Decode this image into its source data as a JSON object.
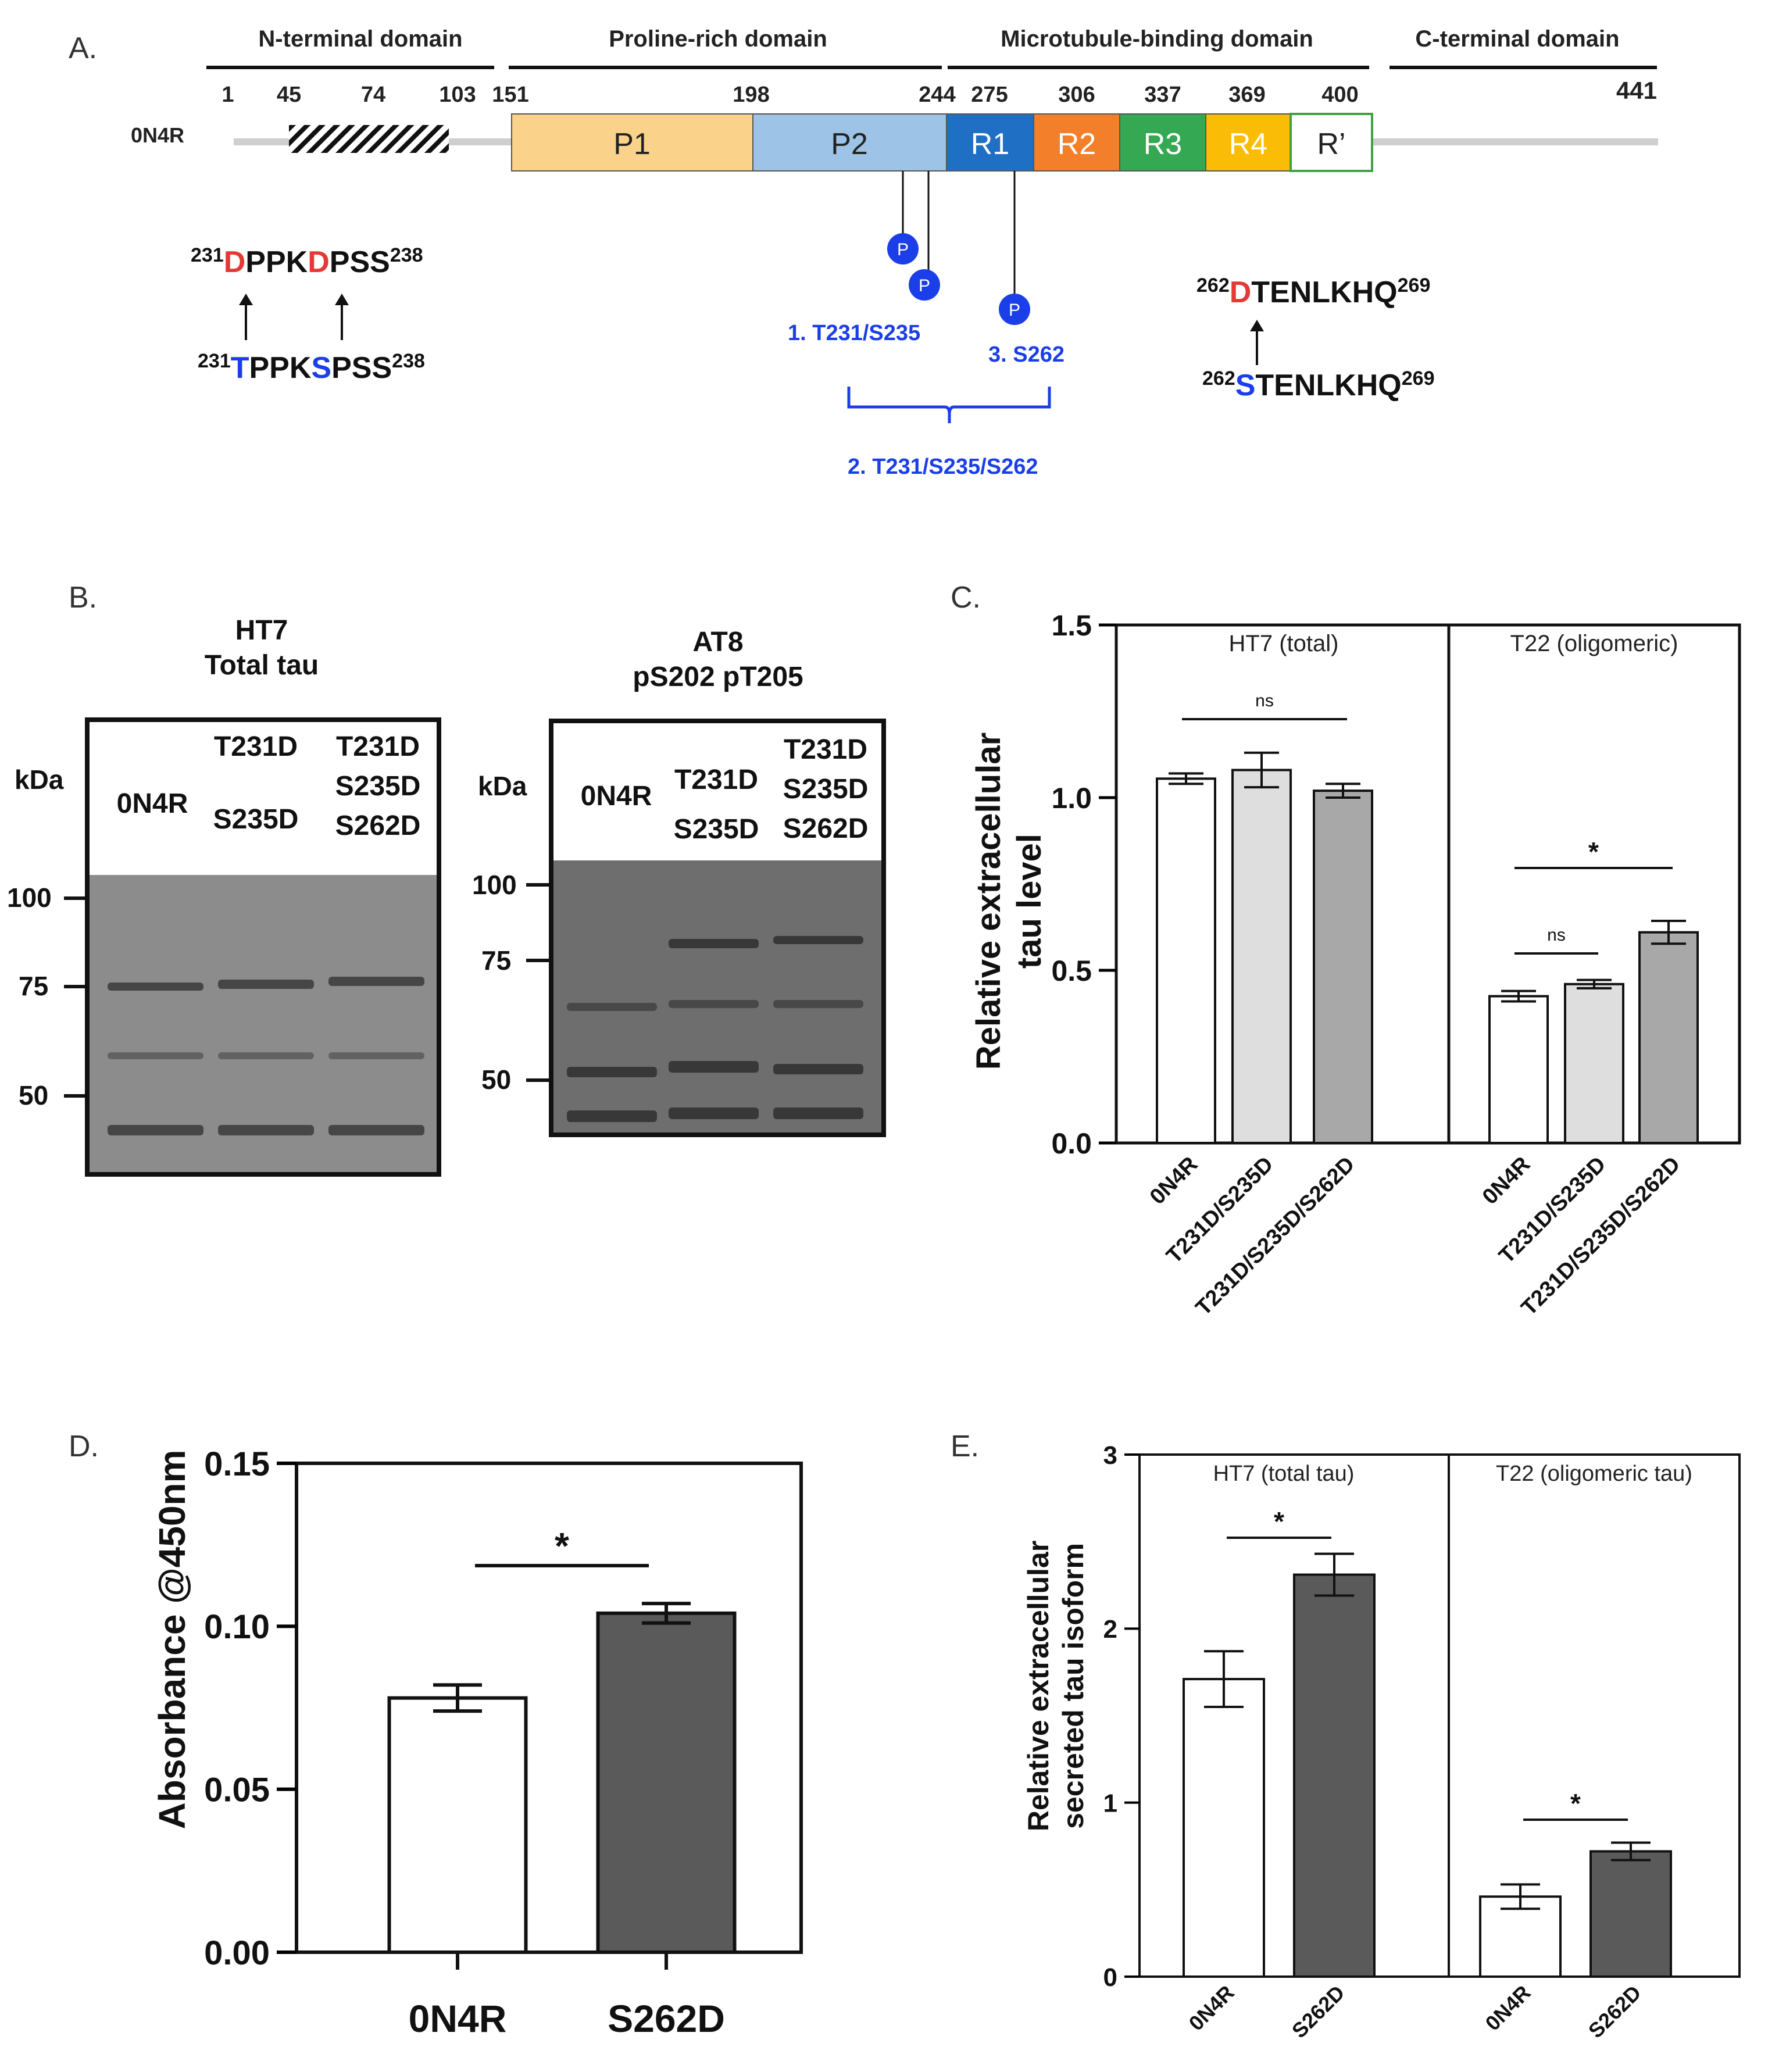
{
  "colors": {
    "p1": "#fad28a",
    "p2": "#9dc3e6",
    "r1": "#1f6fc4",
    "r2": "#f47f2a",
    "r3": "#34a853",
    "r4": "#fbbc05",
    "rprime": "#ffffff",
    "rprime_border": "#43a047",
    "mut_red": "#e53935",
    "site_blue": "#1a3ee8",
    "phos": "#1a3ee8",
    "bar_white": "#ffffff",
    "bar_light": "#dedede",
    "bar_mid": "#a8a8a8",
    "bar_dark": "#5a5a5a",
    "blot_bg": "#8a8a8a",
    "blot_bg2": "#6e6e6e",
    "band": "#3a3a3a",
    "axis": "#000000",
    "backbone": "#cfcfcf"
  },
  "panel_a": {
    "label": "A.",
    "domains": [
      "N-terminal domain",
      "Proline-rich domain",
      "Microtubule-binding domain",
      "C-terminal domain"
    ],
    "positions": [
      "1",
      "45",
      "74",
      "103",
      "151",
      "198",
      "244",
      "275",
      "306",
      "337",
      "369",
      "400",
      "441"
    ],
    "isoform": "0N4R",
    "regions": [
      "P1",
      "P2",
      "R1",
      "R2",
      "R3",
      "R4",
      "R’"
    ],
    "phospho_marker": "P",
    "mutant_seq1": {
      "start": "231",
      "end": "238",
      "d1": "D",
      "mid": "PPK",
      "d2": "D",
      "tail": "PSS"
    },
    "wt_seq1": {
      "start": "231",
      "end": "238",
      "s1": "T",
      "mid": "PPK",
      "s2": "S",
      "tail": "PSS"
    },
    "mutant_seq2": {
      "start": "262",
      "end": "269",
      "d1": "D",
      "tail": "TENLKHQ"
    },
    "wt_seq2": {
      "start": "262",
      "end": "269",
      "s1": "S",
      "tail": "TENLKHQ"
    },
    "site_labels": [
      "1. T231/S235",
      "3. S262",
      "2. T231/S235/S262"
    ]
  },
  "panel_b": {
    "label": "B.",
    "blot1": {
      "title1": "HT7",
      "title2": "Total tau",
      "kda": "kDa",
      "lanes": [
        [
          "0N4R"
        ],
        [
          "T231D",
          "S235D"
        ],
        [
          "T231D",
          "S235D",
          "S262D"
        ]
      ],
      "markers": [
        "100",
        "75",
        "50"
      ]
    },
    "blot2": {
      "title1": "AT8",
      "title2": "pS202 pT205",
      "kda": "kDa",
      "lanes": [
        [
          "0N4R"
        ],
        [
          "T231D",
          "S235D"
        ],
        [
          "T231D",
          "S235D",
          "S262D"
        ]
      ],
      "markers": [
        "100",
        "75",
        "50"
      ]
    }
  },
  "chart_data": [
    {
      "panel": "C.",
      "type": "bar",
      "ylabel": [
        "Relative extracellular",
        "tau level"
      ],
      "ylim": [
        0,
        1.5
      ],
      "yticks": [
        "0.0",
        "0.5",
        "1.0",
        "1.5"
      ],
      "groups": [
        {
          "name": "HT7 (total)",
          "categories": [
            "0N4R",
            "T231D/S235D",
            "T231D/S235D/S262D"
          ],
          "values": [
            1.055,
            1.08,
            1.02
          ],
          "errors": [
            0.015,
            0.05,
            0.02
          ],
          "sig": [
            {
              "label": "ns",
              "from": 0,
              "to": 2
            }
          ]
        },
        {
          "name": "T22 (oligomeric)",
          "categories": [
            "0N4R",
            "T231D/S235D",
            "T231D/S235D/S262D"
          ],
          "values": [
            0.425,
            0.46,
            0.61
          ],
          "errors": [
            0.015,
            0.012,
            0.033
          ],
          "sig": [
            {
              "label": "*",
              "from": 0,
              "to": 2
            },
            {
              "label": "ns",
              "from": 0,
              "to": 1
            }
          ]
        }
      ]
    },
    {
      "panel": "D.",
      "type": "bar",
      "ylabel": "Absorbance @450nm",
      "ylim": [
        0,
        0.15
      ],
      "yticks": [
        "0.00",
        "0.05",
        "0.10",
        "0.15"
      ],
      "categories": [
        "0N4R",
        "S262D"
      ],
      "values": [
        0.078,
        0.104
      ],
      "errors": [
        0.004,
        0.003
      ],
      "sig": [
        {
          "label": "*",
          "from": 0,
          "to": 1
        }
      ]
    },
    {
      "panel": "E.",
      "type": "bar",
      "ylabel": [
        "Relative extracellular",
        "secreted tau isoform"
      ],
      "ylim": [
        0,
        3
      ],
      "yticks": [
        "0",
        "1",
        "2",
        "3"
      ],
      "groups": [
        {
          "name": "HT7 (total tau)",
          "categories": [
            "0N4R",
            "S262D"
          ],
          "values": [
            1.71,
            2.31
          ],
          "errors": [
            0.16,
            0.12
          ],
          "sig": [
            {
              "label": "*",
              "from": 0,
              "to": 1
            }
          ]
        },
        {
          "name": "T22 (oligomeric tau)",
          "categories": [
            "0N4R",
            "S262D"
          ],
          "values": [
            0.46,
            0.72
          ],
          "errors": [
            0.07,
            0.05
          ],
          "sig": [
            {
              "label": "*",
              "from": 0,
              "to": 1
            }
          ]
        }
      ]
    }
  ]
}
